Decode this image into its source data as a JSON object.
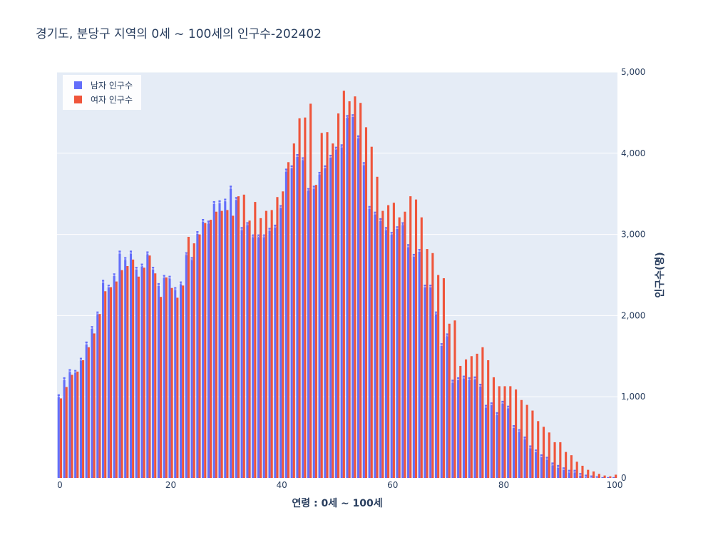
{
  "title": "경기도,  분당구 지역의 0세 ~ 100세의 인구수-202402",
  "chart_data": {
    "type": "bar",
    "xlabel": "연령 : 0세 ~ 100세",
    "ylabel": "인구수(명)",
    "xlim": [
      0,
      100
    ],
    "ylim": [
      0,
      5000
    ],
    "xticks": [
      "0",
      "20",
      "40",
      "60",
      "80",
      "100"
    ],
    "yticks": [
      "0",
      "1,000",
      "2,000",
      "3,000",
      "4,000",
      "5,000"
    ],
    "y_axis_side": "right",
    "grid": true,
    "legend_position": "top-left",
    "x": [
      0,
      1,
      2,
      3,
      4,
      5,
      6,
      7,
      8,
      9,
      10,
      11,
      12,
      13,
      14,
      15,
      16,
      17,
      18,
      19,
      20,
      21,
      22,
      23,
      24,
      25,
      26,
      27,
      28,
      29,
      30,
      31,
      32,
      33,
      34,
      35,
      36,
      37,
      38,
      39,
      40,
      41,
      42,
      43,
      44,
      45,
      46,
      47,
      48,
      49,
      50,
      51,
      52,
      53,
      54,
      55,
      56,
      57,
      58,
      59,
      60,
      61,
      62,
      63,
      64,
      65,
      66,
      67,
      68,
      69,
      70,
      71,
      72,
      73,
      74,
      75,
      76,
      77,
      78,
      79,
      80,
      81,
      82,
      83,
      84,
      85,
      86,
      87,
      88,
      89,
      90,
      91,
      92,
      93,
      94,
      95,
      96,
      97,
      98,
      99,
      100
    ],
    "series": [
      {
        "name": "남자 인구수",
        "color": "#636efa",
        "values": [
          1030,
          1240,
          1340,
          1330,
          1480,
          1680,
          1870,
          2050,
          2440,
          2380,
          2520,
          2800,
          2720,
          2800,
          2600,
          2640,
          2790,
          2600,
          2400,
          2500,
          2490,
          2350,
          2420,
          2780,
          2720,
          3040,
          3190,
          3170,
          3410,
          3420,
          3440,
          3600,
          3460,
          3090,
          3150,
          3000,
          3000,
          3000,
          3080,
          3120,
          3360,
          3810,
          3850,
          3990,
          3950,
          3570,
          3600,
          3770,
          3850,
          3980,
          4080,
          4110,
          4470,
          4480,
          4220,
          3890,
          3350,
          3280,
          3200,
          3090,
          3030,
          3100,
          3150,
          2880,
          2760,
          2820,
          2380,
          2380,
          2050,
          1660,
          1780,
          1210,
          1240,
          1260,
          1240,
          1250,
          1160,
          900,
          930,
          810,
          950,
          890,
          650,
          600,
          510,
          400,
          350,
          290,
          260,
          190,
          160,
          130,
          100,
          100,
          60,
          40,
          30,
          20,
          10,
          10,
          10
        ]
      },
      {
        "name": "여자 인구수",
        "color": "#ef553b",
        "values": [
          980,
          1120,
          1270,
          1310,
          1450,
          1610,
          1780,
          2020,
          2300,
          2350,
          2420,
          2560,
          2610,
          2690,
          2480,
          2590,
          2740,
          2520,
          2230,
          2470,
          2340,
          2220,
          2370,
          2970,
          2890,
          3000,
          3140,
          3180,
          3280,
          3290,
          3300,
          3230,
          3470,
          3490,
          3170,
          3400,
          3200,
          3290,
          3300,
          3460,
          3530,
          3890,
          4120,
          4430,
          4440,
          4610,
          3610,
          4250,
          4260,
          4120,
          4490,
          4770,
          4640,
          4700,
          4620,
          4320,
          4080,
          3710,
          3290,
          3360,
          3390,
          3210,
          3280,
          3470,
          3430,
          3210,
          2820,
          2770,
          2500,
          2460,
          1900,
          1940,
          1380,
          1460,
          1500,
          1530,
          1610,
          1450,
          1240,
          1130,
          1130,
          1130,
          1090,
          960,
          900,
          830,
          700,
          630,
          560,
          440,
          440,
          320,
          280,
          200,
          150,
          100,
          80,
          50,
          30,
          20,
          40
        ]
      }
    ]
  }
}
